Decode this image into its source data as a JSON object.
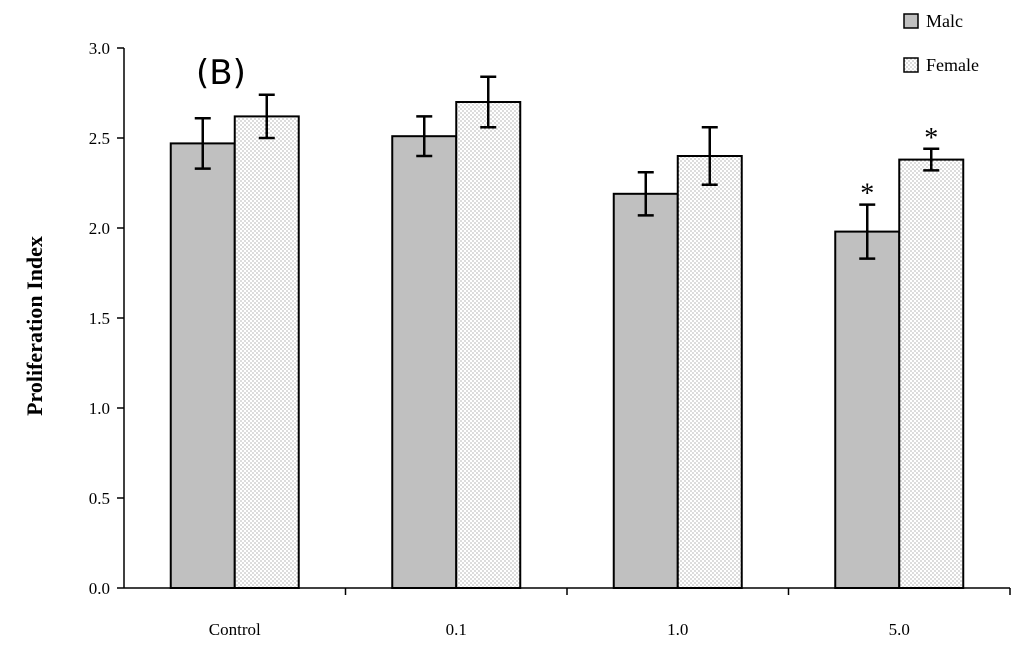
{
  "chart_data": {
    "type": "bar",
    "panel_label": "(B)",
    "categories": [
      "Control",
      "0.1",
      "1.0",
      "5.0"
    ],
    "series": [
      {
        "name": "Malc",
        "values": [
          2.47,
          2.51,
          2.19,
          1.98
        ],
        "errors": [
          0.14,
          0.11,
          0.12,
          0.15
        ],
        "significant": [
          false,
          false,
          false,
          true
        ],
        "fill": "#c0c0c0"
      },
      {
        "name": "Female",
        "values": [
          2.62,
          2.7,
          2.4,
          2.38
        ],
        "errors": [
          0.12,
          0.14,
          0.16,
          0.06
        ],
        "significant": [
          false,
          false,
          false,
          true
        ],
        "fill": "dotted"
      }
    ],
    "xlabel": "",
    "ylabel": "Proliferation Index",
    "ylim": [
      0,
      3.0
    ],
    "yticks": [
      "0.0",
      "0.5",
      "1.0",
      "1.5",
      "2.0",
      "2.5",
      "3.0"
    ],
    "significance_marker": "*",
    "grid": false,
    "legend_position": "top-right"
  }
}
